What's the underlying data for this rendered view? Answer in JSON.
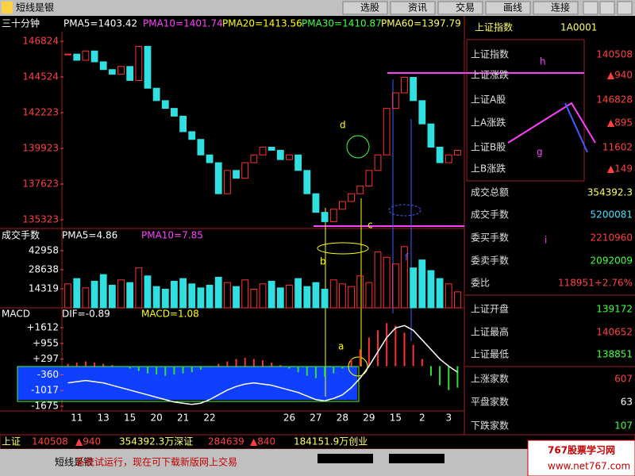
{
  "toolbar": {
    "app_name": "短线是银",
    "buttons": [
      "选股",
      "资讯",
      "交易",
      "画线",
      "连接"
    ]
  },
  "chart_data": [
    {
      "type": "candlestick",
      "title": "三十分钟",
      "indicators": [
        {
          "name": "PMA5=1403.42",
          "color": "#ffffff"
        },
        {
          "name": "PMA10=1401.74",
          "color": "#ff40ff"
        },
        {
          "name": "PMA20=1413.56",
          "color": "#ffff00"
        },
        {
          "name": "PMA30=1410.87",
          "color": "#40ff40"
        },
        {
          "name": "PMA60=1397.79",
          "color": "#ffff60"
        }
      ],
      "values": [
        1460,
        1456,
        1462,
        1455,
        1450,
        1447,
        1452,
        1443,
        1465,
        1438,
        1430,
        1425,
        1420,
        1410,
        1405,
        1395,
        1390,
        1370,
        1385,
        1380,
        1390,
        1395,
        1400,
        1398,
        1392,
        1395,
        1385,
        1370,
        1358,
        1352,
        1360,
        1365,
        1370,
        1375,
        1385,
        1395,
        1425,
        1435,
        1445,
        1430,
        1415,
        1400,
        1390,
        1395,
        1398
      ],
      "ylim": [
        1347.6,
        1474.4
      ],
      "yticks": [
        {
          "value": 1468.24,
          "label": "146824"
        },
        {
          "value": 1445.24,
          "label": "144524"
        },
        {
          "value": 1422.23,
          "label": "142223"
        },
        {
          "value": 1399.23,
          "label": "139923"
        },
        {
          "value": 1376.23,
          "label": "137623"
        },
        {
          "value": 1353.23,
          "label": "135323"
        }
      ],
      "up_color": "#ff3030",
      "down_color": "#30e0e0"
    },
    {
      "type": "bar",
      "title": "成交手数",
      "indicators": [
        {
          "name": "PMA5=4.86",
          "color": "#ffffff"
        },
        {
          "name": "PMA10=7.85",
          "color": "#ff40ff"
        }
      ],
      "values": [
        18000,
        22000,
        15000,
        20000,
        25000,
        17000,
        21000,
        19000,
        30000,
        24000,
        16000,
        14000,
        20000,
        22000,
        18000,
        15000,
        17000,
        23000,
        19000,
        16000,
        21000,
        14000,
        18000,
        20000,
        15000,
        17000,
        22000,
        16000,
        19000,
        14000,
        21000,
        18000,
        16000,
        24000,
        19000,
        42000,
        38000,
        33000,
        46000,
        30000,
        36000,
        28000,
        22000,
        18000,
        12000
      ],
      "ylim": [
        0,
        52500
      ],
      "yticks": [
        42958,
        28638,
        14319
      ],
      "up_color": "#ff3030",
      "down_color": "#30e0e0"
    },
    {
      "type": "macd",
      "title": "MACD",
      "indicators": [
        {
          "name": "DIF=-0.89",
          "color": "#ffffff"
        },
        {
          "name": "MACD=1.08",
          "color": "#ffff00"
        }
      ],
      "categories": [
        null,
        "11",
        null,
        null,
        "13",
        null,
        null,
        "15",
        null,
        null,
        "20",
        null,
        null,
        "21",
        null,
        null,
        "22",
        null,
        null,
        null,
        null,
        null,
        null,
        null,
        null,
        "26",
        null,
        null,
        "27",
        null,
        null,
        "28",
        null,
        null,
        "29",
        null,
        null,
        "15",
        null,
        null,
        "2",
        null,
        null,
        "3",
        null
      ],
      "values": [
        100,
        150,
        200,
        150,
        100,
        50,
        0,
        -100,
        -200,
        -300,
        -350,
        -400,
        -350,
        -300,
        -250,
        -150,
        -50,
        100,
        200,
        300,
        350,
        300,
        250,
        150,
        50,
        -100,
        -250,
        -400,
        -500,
        -450,
        -300,
        -100,
        300,
        700,
        1200,
        1500,
        1800,
        1700,
        1400,
        900,
        300,
        -400,
        -800,
        -1000,
        -900
      ],
      "dif": [
        -700,
        -650,
        -600,
        -650,
        -700,
        -800,
        -900,
        -1000,
        -1100,
        -1200,
        -1300,
        -1400,
        -1500,
        -1550,
        -1600,
        -1550,
        -1400,
        -1200,
        -1000,
        -850,
        -750,
        -700,
        -750,
        -800,
        -900,
        -1000,
        -1100,
        -1250,
        -1400,
        -1450,
        -1350,
        -1200,
        -900,
        -500,
        0,
        600,
        1200,
        1600,
        1700,
        1500,
        1100,
        700,
        300,
        0,
        -250
      ],
      "ylim": [
        -1940,
        2044
      ],
      "yticks": [
        {
          "value": 1612,
          "label": "+1612"
        },
        {
          "value": 955,
          "label": "+955"
        },
        {
          "value": 297,
          "label": "+297"
        },
        -360,
        -1017,
        -1675
      ],
      "up_color": "#ff3030",
      "down_color": "#30e030"
    }
  ],
  "quote_panel": {
    "title": "上证指数",
    "code": "1A0001",
    "rows": [
      {
        "label": "上证指数",
        "value": "140508",
        "color": "#ff4040"
      },
      {
        "label": "上证涨跌",
        "value": "▲940",
        "color": "#ff4040"
      },
      {
        "label": "上证A股",
        "value": "146828",
        "color": "#ff4040"
      },
      {
        "label": "上A涨跌",
        "value": "▲895",
        "color": "#ff4040"
      },
      {
        "label": "上证B股",
        "value": "11602",
        "color": "#ff4040"
      },
      {
        "label": "上B涨跌",
        "value": "▲149",
        "color": "#ff4040"
      },
      {
        "label": "成交总额",
        "value": "354392.3",
        "color": "#ffff60"
      },
      {
        "label": "成交手数",
        "value": "5200081",
        "color": "#40e0ff"
      },
      {
        "label": "委买手数",
        "value": "2210960",
        "color": "#ff4040"
      },
      {
        "label": "委卖手数",
        "value": "2092009",
        "color": "#40ff40"
      },
      {
        "label": "委比",
        "value": "118951+2.76%",
        "color": "#ff4040"
      },
      {
        "label": "上证开盘",
        "value": "139172",
        "color": "#40ff40"
      },
      {
        "label": "上证最高",
        "value": "140652",
        "color": "#ff4040"
      },
      {
        "label": "上证最低",
        "value": "138851",
        "color": "#40ff40"
      },
      {
        "label": "上涨家数",
        "value": "607",
        "color": "#ff4040"
      },
      {
        "label": "平盘家数",
        "value": "63",
        "color": "#ffffff"
      },
      {
        "label": "下跌家数",
        "value": "107",
        "color": "#40ff40"
      }
    ]
  },
  "annotations": [
    {
      "text": "h",
      "color": "#ff40ff"
    },
    {
      "text": "g",
      "color": "#ff40ff"
    },
    {
      "text": "i",
      "color": "#ff40ff"
    },
    {
      "text": "d",
      "color": "#ffff00"
    },
    {
      "text": "c",
      "color": "#ffff00"
    },
    {
      "text": "b",
      "color": "#ffff00"
    },
    {
      "text": "f",
      "color": "#4060ff"
    },
    {
      "text": "a",
      "color": "#ffff00"
    }
  ],
  "status_bar": {
    "items": [
      {
        "text": "上证",
        "color": "#ffff60"
      },
      {
        "text": "140508",
        "color": "#ff4040"
      },
      {
        "text": "▲940",
        "color": "#ff4040"
      },
      {
        "text": "354392.3万深证",
        "color": "#ffff60"
      },
      {
        "text": "284639",
        "color": "#ff4040"
      },
      {
        "text": "▲840",
        "color": "#ff4040"
      },
      {
        "text": "184151.9万创业",
        "color": "#ffff60"
      }
    ]
  },
  "footer": {
    "app_name": "短线是银",
    "message": "系统试运行，现在可下载新版网上交易",
    "site_name": "767股票学习网",
    "site_url": "www.net767.com"
  }
}
